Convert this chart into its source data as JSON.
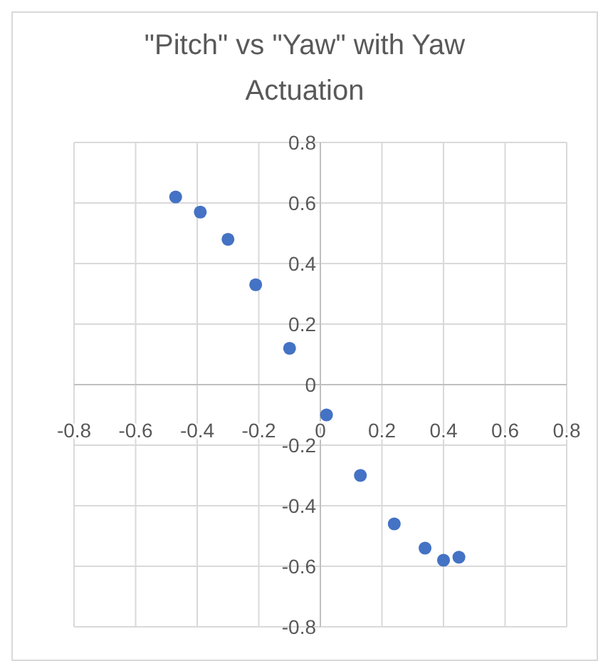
{
  "chart_data": {
    "type": "scatter",
    "title": "\"Pitch\" vs \"Yaw\" with Yaw Actuation",
    "x": [
      -0.47,
      -0.39,
      -0.3,
      -0.21,
      -0.1,
      0.02,
      0.13,
      0.24,
      0.34,
      0.4,
      0.45
    ],
    "series": [
      {
        "color": "#4472c4",
        "values": [
          0.62,
          0.57,
          0.48,
          0.33,
          0.12,
          -0.1,
          -0.3,
          -0.46,
          -0.54,
          -0.58,
          -0.57
        ]
      }
    ],
    "xlim": [
      -0.8,
      0.8
    ],
    "xticks": [
      -0.8,
      -0.6,
      -0.4,
      -0.2,
      0,
      0.2,
      0.4,
      0.6,
      0.8
    ],
    "ylim": [
      -0.8,
      0.8
    ],
    "yticks": [
      -0.8,
      -0.6,
      -0.4,
      -0.2,
      0,
      0.2,
      0.4,
      0.6,
      0.8
    ],
    "grid": true,
    "marker": "circle"
  }
}
